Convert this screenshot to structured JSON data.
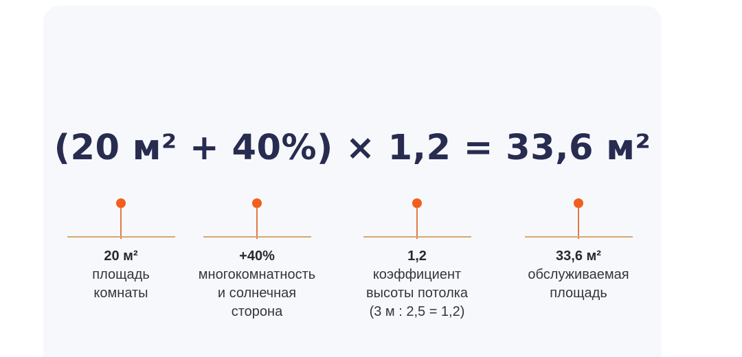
{
  "card": {
    "formula": "(20 м² + 40%) × 1,2 = 33,6 м²"
  },
  "annotations": [
    {
      "value": "20 м²",
      "description": "площадь\nкомнаты"
    },
    {
      "value": "+40%",
      "description": "многокомнатность\nи солнечная\nсторона"
    },
    {
      "value": "1,2",
      "description": "коэффициент\nвысоты потолка\n(3 м : 2,5 = 1,2)"
    },
    {
      "value": "33,6 м²",
      "description": "обслуживаемая\nплощадь"
    }
  ],
  "colors": {
    "card_background": "#f7f8fc",
    "formula_text": "#272c50",
    "marker_dot": "#f25e1c",
    "marker_stem": "#e1794a",
    "marker_baseline": "#d6a76e",
    "value_text": "#28282f",
    "description_text": "#34343c"
  }
}
